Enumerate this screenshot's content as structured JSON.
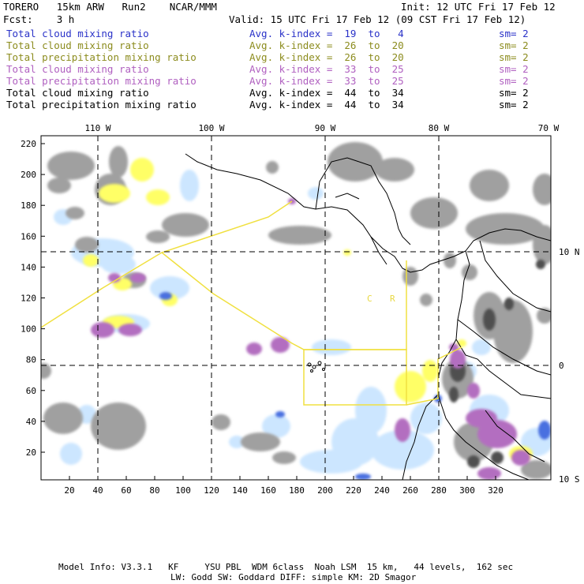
{
  "header": {
    "model_name": "TORERO   15km ARW   Run2    NCAR/MMM",
    "init": "Init: 12 UTC Fri 17 Feb 12",
    "fcst": "Fcst:    3 h",
    "valid": "Valid: 15 UTC Fri 17 Feb 12 (09 CST Fri 17 Feb 12)"
  },
  "legend": [
    {
      "field": "Total cloud mixing ratio",
      "index": "Avg. k-index =  19  to   4",
      "sm": "sm= 2",
      "color": "#2a32c8"
    },
    {
      "field": "Total cloud mixing ratio",
      "index": "Avg. k-index =  26  to  20",
      "sm": "sm= 2",
      "color": "#8c8c1e"
    },
    {
      "field": "Total precipitation mixing ratio",
      "index": "Avg. k-index =  26  to  20",
      "sm": "sm= 2",
      "color": "#8c8c1e"
    },
    {
      "field": "Total cloud mixing ratio",
      "index": "Avg. k-index =  33  to  25",
      "sm": "sm= 2",
      "color": "#b060c0"
    },
    {
      "field": "Total precipitation mixing ratio",
      "index": "Avg. k-index =  33  to  25",
      "sm": "sm= 2",
      "color": "#b060c0"
    },
    {
      "field": "Total cloud mixing ratio",
      "index": "Avg. k-index =  44  to  34",
      "sm": "sm= 2",
      "color": "#000000"
    },
    {
      "field": "Total precipitation mixing ratio",
      "index": "Avg. k-index =  44  to  34",
      "sm": "sm= 2",
      "color": "#000000"
    }
  ],
  "map": {
    "lon_labels": [
      "110 W",
      "100 W",
      "90 W",
      "80 W",
      "70 W"
    ],
    "lat_labels": [
      "10 N",
      "0",
      "10 S"
    ],
    "x_ticks": [
      "20",
      "40",
      "60",
      "80",
      "100",
      "120",
      "140",
      "160",
      "180",
      "200",
      "220",
      "240",
      "260",
      "280",
      "300",
      "320"
    ],
    "y_ticks": [
      "220",
      "200",
      "180",
      "160",
      "140",
      "120",
      "100",
      "80",
      "60",
      "40",
      "20"
    ],
    "place_labels": [
      "C",
      "R"
    ],
    "colors": {
      "grey_cloud": "#a0a0a0",
      "dark_cloud": "#505050",
      "yellow": "#ffff66",
      "light_blue": "#cce6ff",
      "blue": "#4a70e0",
      "purple": "#b36ec0",
      "coast": "#000000",
      "flight_track": "#f0e040"
    }
  },
  "footer": {
    "line1": "Model Info: V3.3.1   KF     YSU PBL  WDM 6class  Noah LSM  15 km,   44 levels,  162 sec",
    "line2": "LW: Godd SW: Goddard DIFF: simple KM: 2D Smagor"
  }
}
